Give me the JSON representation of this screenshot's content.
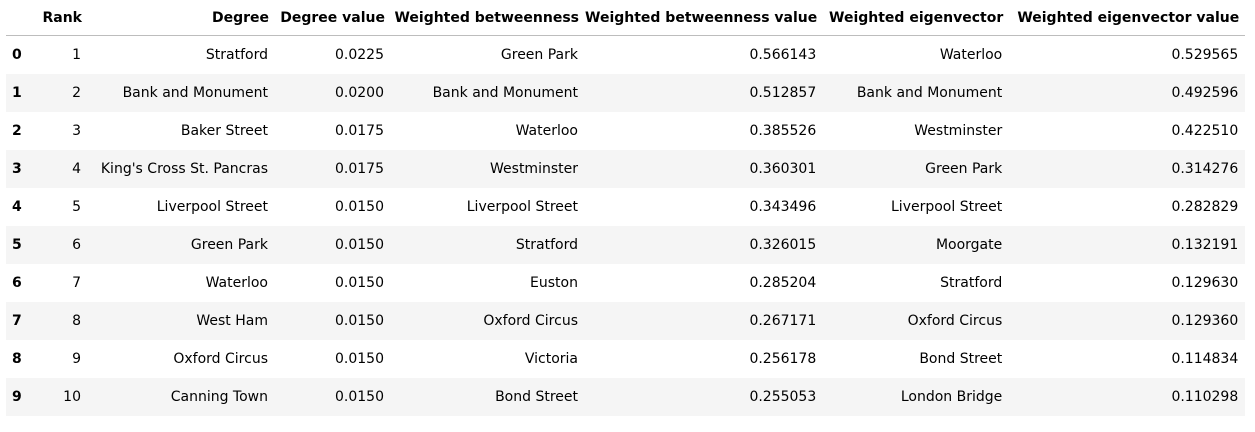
{
  "columns": {
    "index": "",
    "rank": "Rank",
    "degree": "Degree",
    "degree_value": "Degree value",
    "weighted_betweenness": "Weighted betweenness",
    "weighted_betweenness_value": "Weighted betweenness value",
    "weighted_eigenvector": "Weighted eigenvector",
    "weighted_eigenvector_value": "Weighted eigenvector value"
  },
  "rows": [
    {
      "index": "0",
      "rank": "1",
      "degree": "Stratford",
      "degree_value": "0.0225",
      "weighted_betweenness": "Green Park",
      "weighted_betweenness_value": "0.566143",
      "weighted_eigenvector": "Waterloo",
      "weighted_eigenvector_value": "0.529565"
    },
    {
      "index": "1",
      "rank": "2",
      "degree": "Bank and Monument",
      "degree_value": "0.0200",
      "weighted_betweenness": "Bank and Monument",
      "weighted_betweenness_value": "0.512857",
      "weighted_eigenvector": "Bank and Monument",
      "weighted_eigenvector_value": "0.492596"
    },
    {
      "index": "2",
      "rank": "3",
      "degree": "Baker Street",
      "degree_value": "0.0175",
      "weighted_betweenness": "Waterloo",
      "weighted_betweenness_value": "0.385526",
      "weighted_eigenvector": "Westminster",
      "weighted_eigenvector_value": "0.422510"
    },
    {
      "index": "3",
      "rank": "4",
      "degree": "King's Cross St. Pancras",
      "degree_value": "0.0175",
      "weighted_betweenness": "Westminster",
      "weighted_betweenness_value": "0.360301",
      "weighted_eigenvector": "Green Park",
      "weighted_eigenvector_value": "0.314276"
    },
    {
      "index": "4",
      "rank": "5",
      "degree": "Liverpool Street",
      "degree_value": "0.0150",
      "weighted_betweenness": "Liverpool Street",
      "weighted_betweenness_value": "0.343496",
      "weighted_eigenvector": "Liverpool Street",
      "weighted_eigenvector_value": "0.282829"
    },
    {
      "index": "5",
      "rank": "6",
      "degree": "Green Park",
      "degree_value": "0.0150",
      "weighted_betweenness": "Stratford",
      "weighted_betweenness_value": "0.326015",
      "weighted_eigenvector": "Moorgate",
      "weighted_eigenvector_value": "0.132191"
    },
    {
      "index": "6",
      "rank": "7",
      "degree": "Waterloo",
      "degree_value": "0.0150",
      "weighted_betweenness": "Euston",
      "weighted_betweenness_value": "0.285204",
      "weighted_eigenvector": "Stratford",
      "weighted_eigenvector_value": "0.129630"
    },
    {
      "index": "7",
      "rank": "8",
      "degree": "West Ham",
      "degree_value": "0.0150",
      "weighted_betweenness": "Oxford Circus",
      "weighted_betweenness_value": "0.267171",
      "weighted_eigenvector": "Oxford Circus",
      "weighted_eigenvector_value": "0.129360"
    },
    {
      "index": "8",
      "rank": "9",
      "degree": "Oxford Circus",
      "degree_value": "0.0150",
      "weighted_betweenness": "Victoria",
      "weighted_betweenness_value": "0.256178",
      "weighted_eigenvector": "Bond Street",
      "weighted_eigenvector_value": "0.114834"
    },
    {
      "index": "9",
      "rank": "10",
      "degree": "Canning Town",
      "degree_value": "0.0150",
      "weighted_betweenness": "Bond Street",
      "weighted_betweenness_value": "0.255053",
      "weighted_eigenvector": "London Bridge",
      "weighted_eigenvector_value": "0.110298"
    }
  ]
}
